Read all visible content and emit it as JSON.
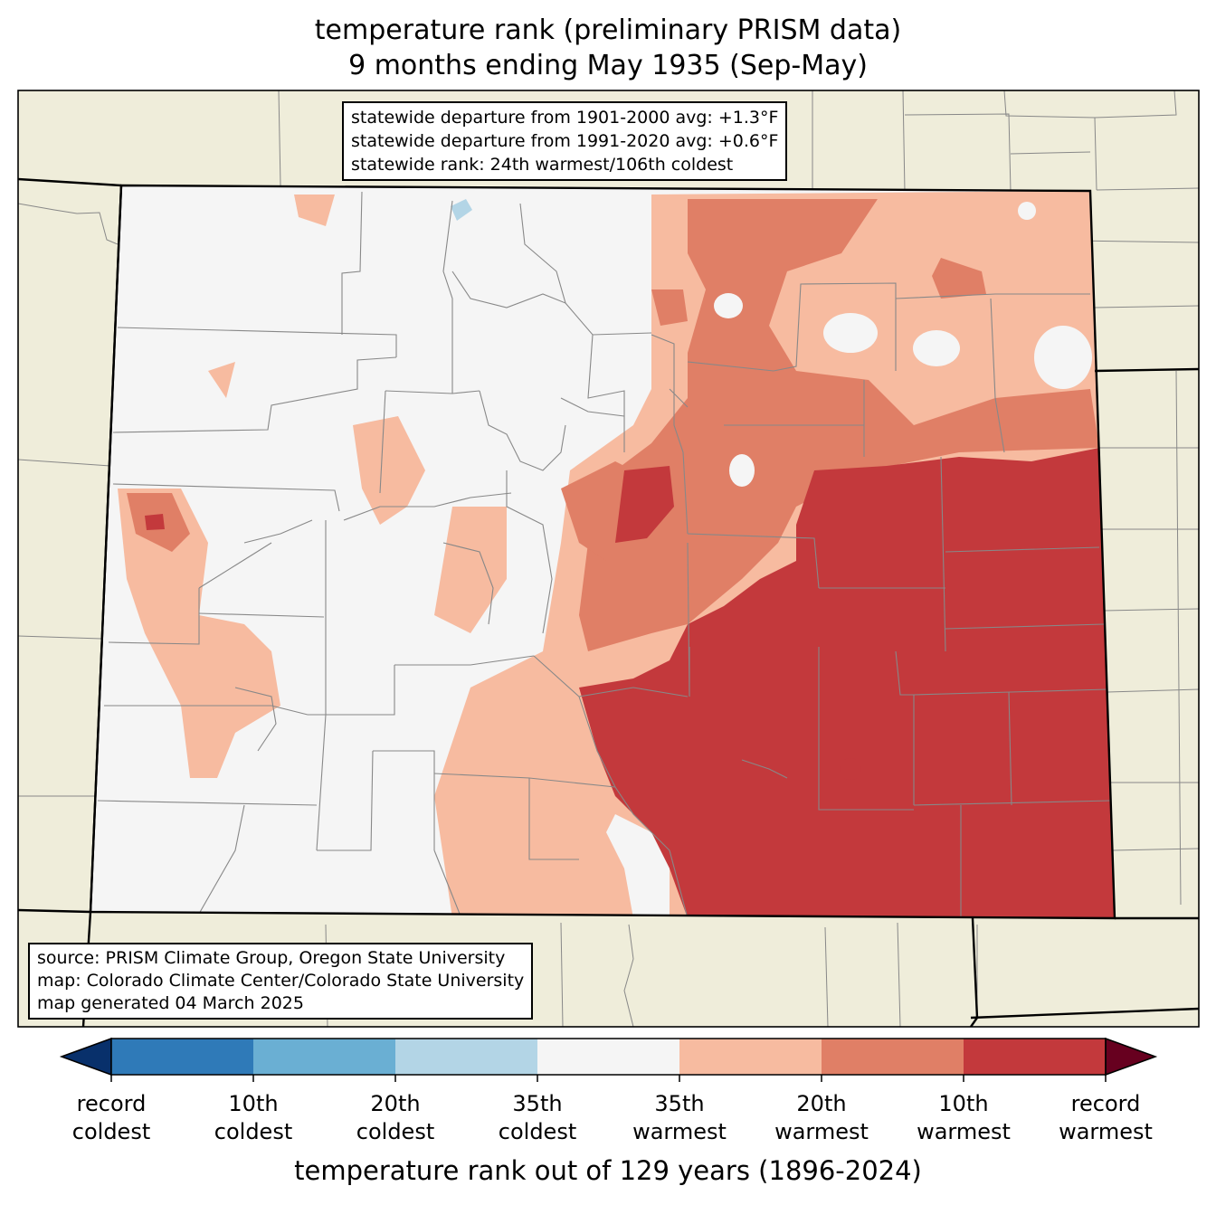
{
  "title": {
    "line1": "temperature rank (preliminary PRISM data)",
    "line2": "9 months ending May 1935 (Sep-May)"
  },
  "stats_box": {
    "line1": "statewide departure from 1901-2000 avg: +1.3°F",
    "line2": "statewide departure from 1991-2020 avg: +0.6°F",
    "line3": "statewide rank: 24th warmest/106th coldest"
  },
  "source_box": {
    "line1": "source: PRISM Climate Group, Oregon State University",
    "line2": "map: Colorado Climate Center/Colorado State University",
    "line3": "map generated 04 March 2025"
  },
  "colorbar": {
    "title": "temperature rank out of 129 years (1896-2024)",
    "labels": [
      {
        "line1": "record",
        "line2": "coldest"
      },
      {
        "line1": "10th",
        "line2": "coldest"
      },
      {
        "line1": "20th",
        "line2": "coldest"
      },
      {
        "line1": "35th",
        "line2": "coldest"
      },
      {
        "line1": "35th",
        "line2": "warmest"
      },
      {
        "line1": "20th",
        "line2": "warmest"
      },
      {
        "line1": "10th",
        "line2": "warmest"
      },
      {
        "line1": "record",
        "line2": "warmest"
      }
    ],
    "colors": {
      "record_coldest": "#08306b",
      "coldest_10": "#2f7ab8",
      "coldest_20": "#6aafd3",
      "coldest_35": "#b3d5e6",
      "near_normal": "#f5f5f5",
      "warmest_35": "#f7bba0",
      "warmest_20": "#e07f66",
      "warmest_10": "#c3393c",
      "record_warmest": "#67001f"
    }
  },
  "map_colors": {
    "background": "#efedda",
    "state_fill": "#f5f5f5",
    "county_lines": "#888888",
    "state_border": "#000000"
  }
}
